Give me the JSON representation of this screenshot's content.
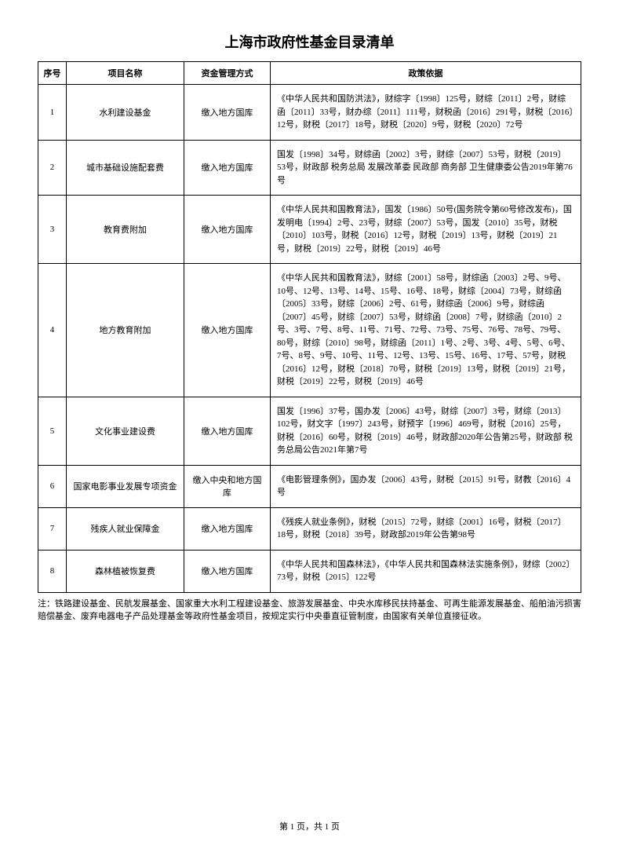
{
  "title": "上海市政府性基金目录清单",
  "columns": {
    "seq": "序号",
    "name": "项目名称",
    "mgmt": "资金管理方式",
    "basis": "政策依据"
  },
  "rows": [
    {
      "seq": "1",
      "name": "水利建设基金",
      "mgmt": "缴入地方国库",
      "basis": "《中华人民共和国防洪法》，财综字〔1998〕125号，财综〔2011〕2号，财综函〔2011〕33号，财办综〔2011〕111号，财税函〔2016〕291号，财税〔2016〕12号，财税〔2017〕18号，财税〔2020〕9号，财税〔2020〕72号"
    },
    {
      "seq": "2",
      "name": "城市基础设施配套费",
      "mgmt": "缴入地方国库",
      "basis": "国发〔1998〕34号，财综函〔2002〕3号，财综〔2007〕53号，财税〔2019〕53号，财政部 税务总局 发展改革委 民政部 商务部 卫生健康委公告2019年第76号"
    },
    {
      "seq": "3",
      "name": "教育费附加",
      "mgmt": "缴入地方国库",
      "basis": "《中华人民共和国教育法》，国发〔1986〕50号(国务院令第60号修改发布)，国发明电〔1994〕2号、23号，财综〔2007〕53号，国发〔2010〕35号，财税〔2010〕103号，财税〔2016〕12号，财税〔2019〕13号，财税〔2019〕21号，财税〔2019〕22号，财税〔2019〕46号"
    },
    {
      "seq": "4",
      "name": "地方教育附加",
      "mgmt": "缴入地方国库",
      "basis": "《中华人民共和国教育法》，财综〔2001〕58号，财综函〔2003〕2号、9号、10号、12号、13号、14号、15号、16号、18号，财综〔2004〕73号，财综函〔2005〕33号，财综〔2006〕2号、61号，财综函〔2006〕9号，财综函〔2007〕45号，财综〔2007〕53号，财综函〔2008〕7号，财综函〔2010〕2号、3号、7号、8号、11号、71号、72号、73号、75号、76号、78号、79号、80号，财综〔2010〕98号，财综函〔2011〕1号、2号、3号、4号、5号、6号、7号、8号、9号、10号、11号、12号、13号、15号、16号、17号、57号，财税〔2016〕12号，财税〔2018〕70号，财税〔2019〕13号，财税〔2019〕21号，财税〔2019〕22号，财税〔2019〕46号"
    },
    {
      "seq": "5",
      "name": "文化事业建设费",
      "mgmt": "缴入地方国库",
      "basis": "国发〔1996〕37号，国办发〔2006〕43号，财综〔2007〕3号，财综〔2013〕102号，财文字〔1997〕243号，财预字〔1996〕469号，财税〔2016〕25号，财税〔2016〕60号，财税〔2019〕46号，财政部2020年公告第25号，财政部 税务总局公告2021年第7号"
    },
    {
      "seq": "6",
      "name": "国家电影事业发展专项资金",
      "mgmt": "缴入中央和地方国库",
      "basis": "《电影管理条例》，国办发〔2006〕43号，财税〔2015〕91号，财教〔2016〕4号"
    },
    {
      "seq": "7",
      "name": "残疾人就业保障金",
      "mgmt": "缴入地方国库",
      "basis": "《残疾人就业条例》，财税〔2015〕72号，财综〔2001〕16号，财税〔2017〕18号，财税〔2018〕39号，财政部2019年公告第98号"
    },
    {
      "seq": "8",
      "name": "森林植被恢复费",
      "mgmt": "缴入地方国库",
      "basis": "《中华人民共和国森林法》，《中华人民共和国森林法实施条例》，财综〔2002〕73号，财税〔2015〕122号"
    }
  ],
  "footnote": "注：铁路建设基金、民航发展基金、国家重大水利工程建设基金、旅游发展基金、中央水库移民扶持基金、可再生能源发展基金、船舶油污损害赔偿基金、废弃电器电子产品处理基金等政府性基金项目，按规定实行中央垂直征管制度，由国家有关单位直接征收。",
  "pager": "第 1 页，共 1 页"
}
